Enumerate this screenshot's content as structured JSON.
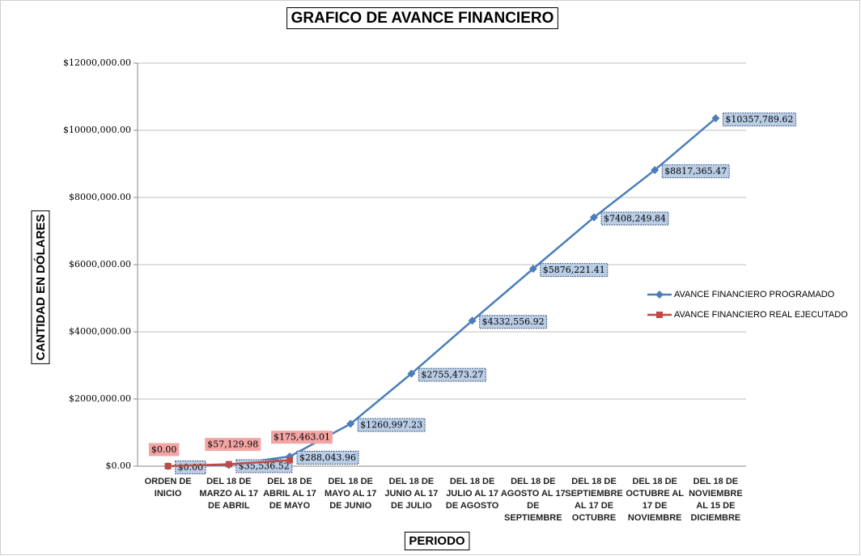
{
  "chart_data": {
    "type": "line",
    "title": "GRAFICO DE AVANCE FINANCIERO",
    "x_label": "PERIODO",
    "y_label": "CANTIDAD EN DÓLARES",
    "categories": [
      "ORDEN DE INICIO",
      "DEL 18 DE MARZO AL 17 DE ABRIL",
      "DEL 18 DE ABRIL AL 17 DE MAYO",
      "DEL 18 DE MAYO AL 17 DE JUNIO",
      "DEL 18 DE JUNIO AL 17 DE JULIO",
      "DEL 18 DE JULIO AL 17 DE AGOSTO",
      "DEL 18 DE AGOSTO AL 17 DE SEPTIEMBRE",
      "DEL 18 DE SEPTIEMBRE AL 17 DE OCTUBRE",
      "DEL 18 DE OCTUBRE AL 17 DE NOVIEMBRE",
      "DEL 18 DE NOVIEMBRE AL 15 DE DICIEMBRE"
    ],
    "series": [
      {
        "name": "AVANCE FINANCIERO PROGRAMADO",
        "color": "#4a7ebb",
        "marker": "diamond",
        "values": [
          0,
          35536.52,
          288043.96,
          1260997.23,
          2755473.27,
          4332556.92,
          5876221.41,
          7408249.84,
          8817365.47,
          10357789.62
        ],
        "value_labels": [
          "$0.00",
          "$35,536.52",
          "$288,043.96",
          "$1260,997.23",
          "$2755,473.27",
          "$4332,556.92",
          "$5876,221.41",
          "$7408,249.84",
          "$8817,365.47",
          "$10357,789.62"
        ]
      },
      {
        "name": "AVANCE FINANCIERO REAL EJECUTADO",
        "color": "#be4b48",
        "marker": "square",
        "values": [
          0,
          57129.98,
          175463.01,
          null,
          null,
          null,
          null,
          null,
          null,
          null
        ],
        "value_labels": [
          "$0.00",
          "$57,129.98",
          "$175,463.01",
          null,
          null,
          null,
          null,
          null,
          null,
          null
        ]
      }
    ],
    "ylim": [
      0,
      12000000
    ],
    "yticks": [
      {
        "value": 0,
        "label": "$0.00"
      },
      {
        "value": 2000000,
        "label": "$2000,000.00"
      },
      {
        "value": 4000000,
        "label": "$4000,000.00"
      },
      {
        "value": 6000000,
        "label": "$6000,000.00"
      },
      {
        "value": 8000000,
        "label": "$8000,000.00"
      },
      {
        "value": 10000000,
        "label": "$10000,000.00"
      },
      {
        "value": 12000000,
        "label": "$12000,000.00"
      }
    ],
    "grid": true,
    "legend": "right"
  }
}
